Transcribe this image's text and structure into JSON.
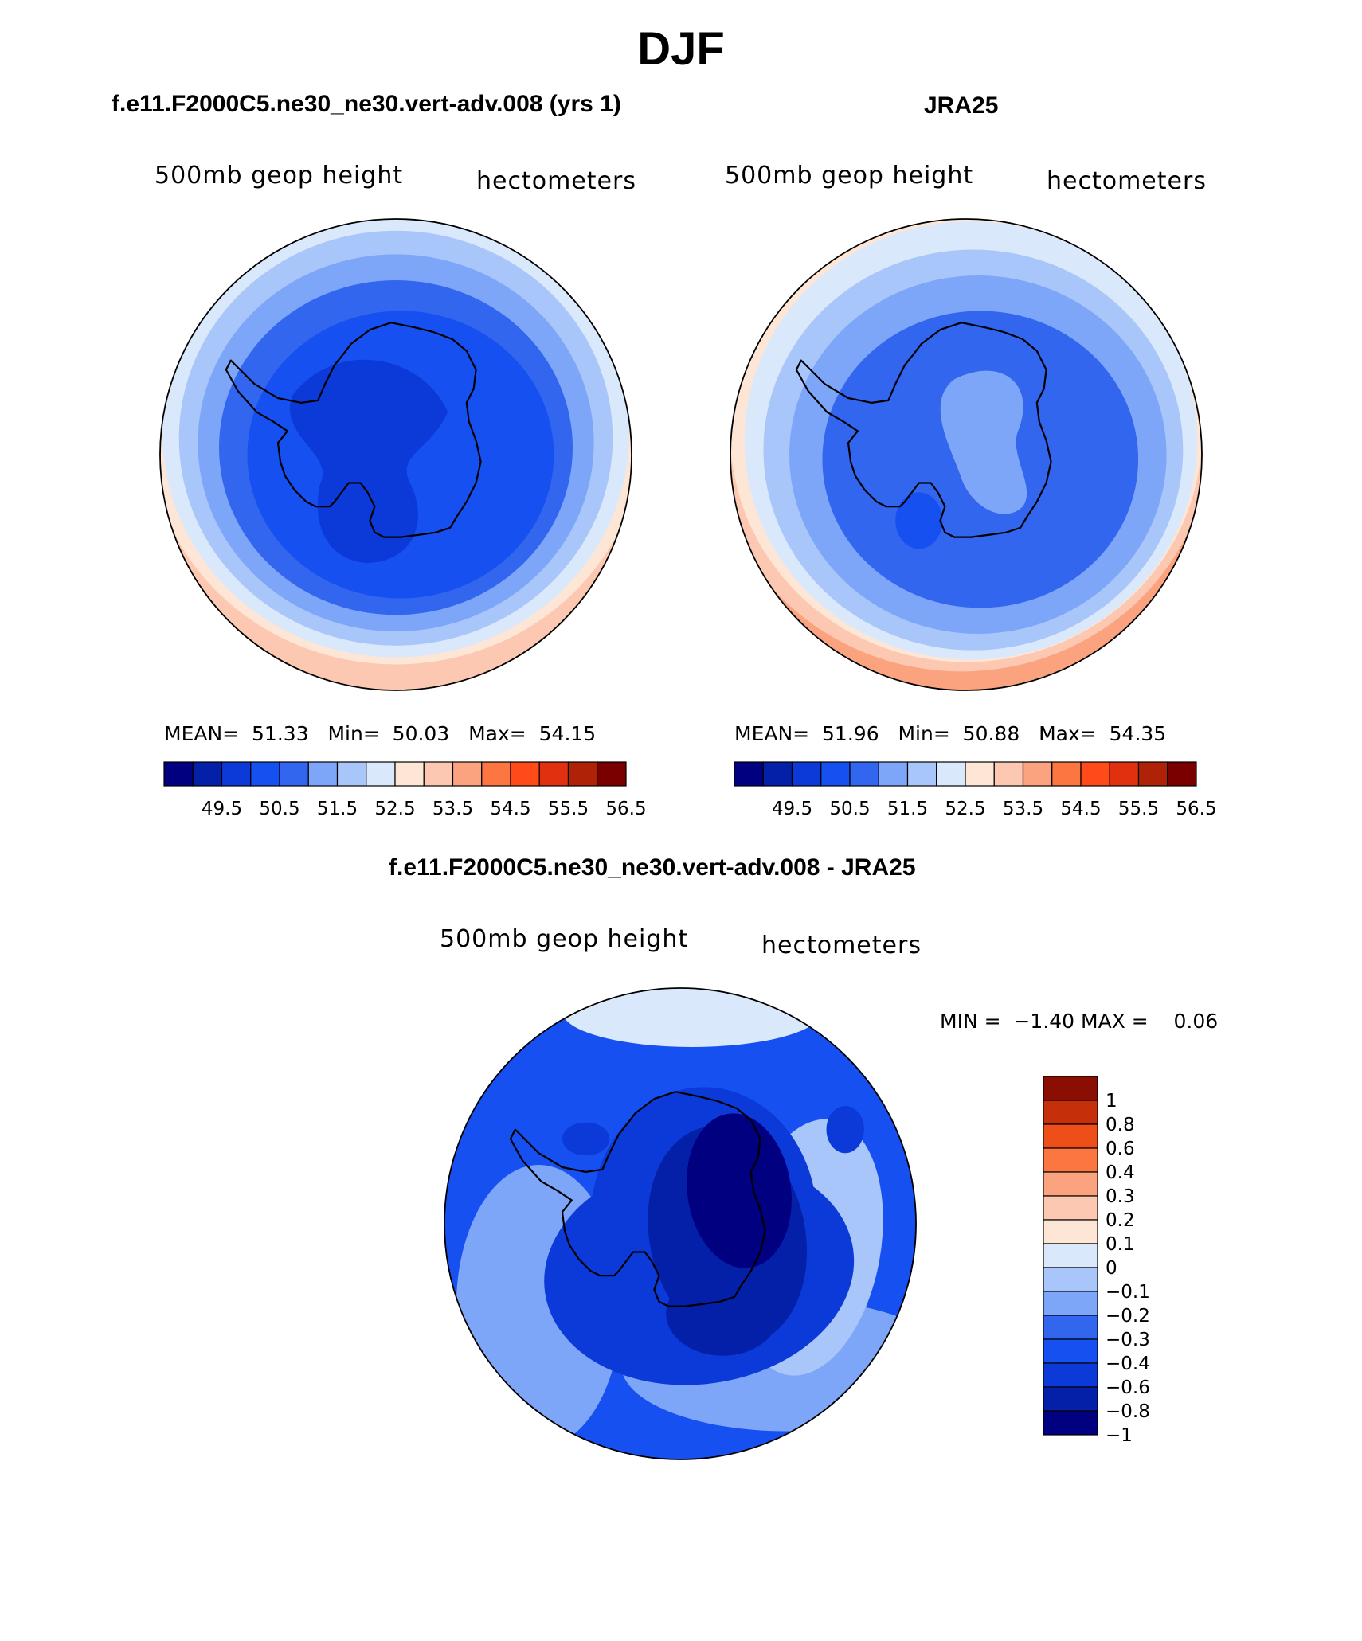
{
  "figure": {
    "title": "DJF"
  },
  "colors": {
    "scale_14": [
      "#000080",
      "#0520a8",
      "#0b3ad8",
      "#1750f0",
      "#3366ee",
      "#7ea6f8",
      "#a9c6fa",
      "#dae8fb",
      "#fde6d6",
      "#fcc8b1",
      "#fba37f",
      "#fb7640",
      "#ff4a19",
      "#e03010",
      "#b02208",
      "#7a0000"
    ],
    "diff_scale": [
      "#000080",
      "#0520a8",
      "#0b3ad8",
      "#1750f0",
      "#3366ee",
      "#7ea6f8",
      "#a9c6fa",
      "#dae8fb",
      "#fde6d6",
      "#fcc8b1",
      "#fba37f",
      "#fb7640",
      "#ee4e17",
      "#c52f0a",
      "#8a0f02"
    ]
  },
  "chart_data": [
    {
      "type": "heatmap",
      "projection": "south-polar-stereographic",
      "title": "f.e11.F2000C5.ne30_ne30.vert-adv.008 (yrs 1)",
      "left_label": "500mb geop height",
      "right_label": "hectometers",
      "stats": {
        "mean_label": "MEAN=",
        "mean": "51.33",
        "min_label": "Min=",
        "min": "50.03",
        "max_label": "Max=",
        "max": "54.15"
      },
      "colorbar": {
        "orientation": "horizontal",
        "labels": [
          "49.5",
          "50.5",
          "51.5",
          "52.5",
          "53.5",
          "54.5",
          "55.5",
          "56.5"
        ]
      }
    },
    {
      "type": "heatmap",
      "projection": "south-polar-stereographic",
      "title": "JRA25",
      "left_label": "500mb geop height",
      "right_label": "hectometers",
      "stats": {
        "mean_label": "MEAN=",
        "mean": "51.96",
        "min_label": "Min=",
        "min": "50.88",
        "max_label": "Max=",
        "max": "54.35"
      },
      "colorbar": {
        "orientation": "horizontal",
        "labels": [
          "49.5",
          "50.5",
          "51.5",
          "52.5",
          "53.5",
          "54.5",
          "55.5",
          "56.5"
        ]
      }
    },
    {
      "type": "heatmap",
      "projection": "south-polar-stereographic",
      "title": "f.e11.F2000C5.ne30_ne30.vert-adv.008 - JRA25",
      "left_label": "500mb geop height",
      "right_label": "hectometers",
      "stats": {
        "min_label": "MIN =",
        "min": "−1.40",
        "max_label": "MAX =",
        "max": "0.06"
      },
      "colorbar": {
        "orientation": "vertical",
        "labels": [
          "1",
          "0.8",
          "0.6",
          "0.4",
          "0.3",
          "0.2",
          "0.1",
          "0",
          "−0.1",
          "−0.2",
          "−0.3",
          "−0.4",
          "−0.6",
          "−0.8",
          "−1"
        ]
      }
    }
  ]
}
